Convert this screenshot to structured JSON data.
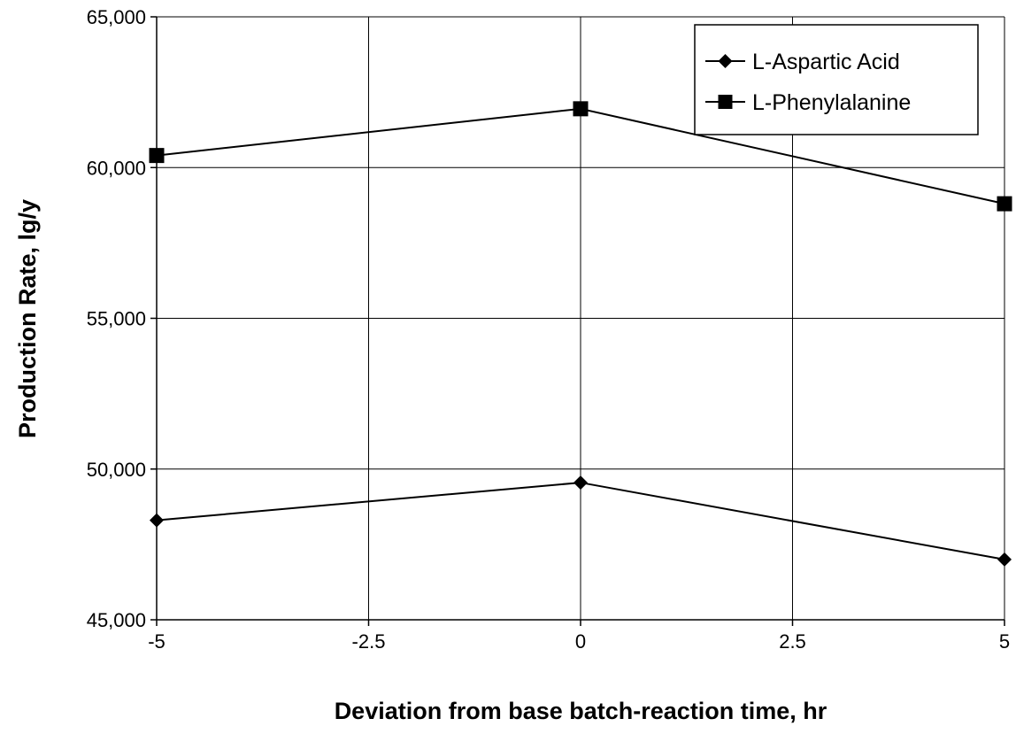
{
  "chart_data": {
    "type": "line",
    "title": "",
    "xlabel": "Deviation from base batch-reaction time, hr",
    "ylabel": "Production Rate, lg/y",
    "xlim": [
      -5,
      5
    ],
    "ylim": [
      45000,
      65000
    ],
    "x_ticks": [
      -5,
      -2.5,
      0,
      2.5,
      5
    ],
    "x_tick_labels": [
      "-5",
      "-2.5",
      "0",
      "2.5",
      "5"
    ],
    "y_ticks": [
      45000,
      50000,
      55000,
      60000,
      65000
    ],
    "y_tick_labels": [
      "45,000",
      "50,000",
      "55,000",
      "60,000",
      "65,000"
    ],
    "grid": true,
    "legend_position": "top-right",
    "series": [
      {
        "name": "L-Aspartic Acid",
        "marker": "diamond",
        "x": [
          -5,
          0,
          5
        ],
        "y": [
          48300,
          49550,
          47000
        ]
      },
      {
        "name": "L-Phenylalanine",
        "marker": "square",
        "x": [
          -5,
          0,
          5
        ],
        "y": [
          60400,
          61950,
          58800
        ]
      }
    ],
    "colors": {
      "line": "#000000",
      "grid": "#000000",
      "background": "#ffffff"
    }
  }
}
